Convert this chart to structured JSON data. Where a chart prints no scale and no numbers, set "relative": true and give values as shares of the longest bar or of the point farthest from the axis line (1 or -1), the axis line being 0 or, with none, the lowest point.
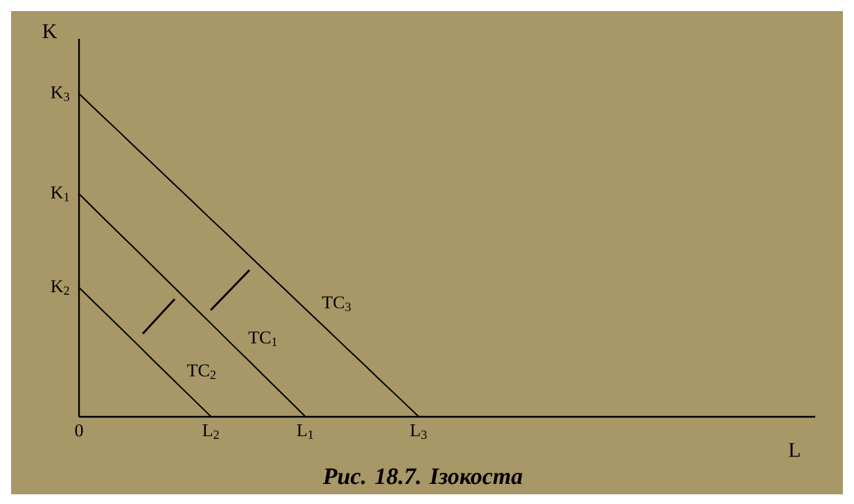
{
  "chart_data": {
    "type": "line",
    "relative": true,
    "title": "Рис. 18.7. Ізокоста",
    "xlabel": "L",
    "ylabel": "K",
    "marker": "none",
    "line_style": "solid",
    "categories": [
      "0",
      null,
      null,
      null,
      null,
      null,
      null,
      "L$_{2}$",
      null,
      null,
      null,
      null,
      "L$_{1}$",
      null,
      null,
      null,
      null,
      null,
      "L$_{3}$",
      null,
      null,
      null,
      null,
      null,
      null,
      null,
      null,
      null,
      null,
      null,
      null,
      null,
      null,
      null,
      null,
      null,
      null,
      null,
      null,
      null
    ],
    "series": [
      {
        "name": "TC$_{3}$",
        "color": "#000000",
        "values": [
          1,
          0.944,
          0.889,
          0.833,
          0.778,
          0.722,
          0.667,
          0.611,
          0.556,
          0.5,
          0.444,
          0.389,
          0.333,
          0.278,
          0.222,
          0.167,
          0.111,
          0.056,
          0,
          null,
          null,
          null,
          null,
          null,
          null,
          null,
          null,
          null,
          null,
          null,
          null,
          null,
          null,
          null,
          null,
          null,
          null,
          null,
          null,
          null
        ]
      },
      {
        "name": "TC$_{1}$",
        "color": "#000000",
        "values": [
          0.69,
          0.632,
          0.575,
          0.518,
          0.46,
          0.403,
          0.345,
          0.288,
          0.23,
          0.173,
          0.115,
          0.058,
          0,
          null,
          null,
          null,
          null,
          null,
          null,
          null,
          null,
          null,
          null,
          null,
          null,
          null,
          null,
          null,
          null,
          null,
          null,
          null,
          null,
          null,
          null,
          null,
          null,
          null,
          null,
          null
        ]
      },
      {
        "name": "TC$_{2}$",
        "color": "#000000",
        "values": [
          0.4,
          0.343,
          0.286,
          0.229,
          0.171,
          0.114,
          0.057,
          0,
          null,
          null,
          null,
          null,
          null,
          null,
          null,
          null,
          null,
          null,
          null,
          null,
          null,
          null,
          null,
          null,
          null,
          null,
          null,
          null,
          null,
          null,
          null,
          null,
          null,
          null,
          null,
          null,
          null,
          null,
          null,
          null
        ]
      }
    ],
    "annotations": [
      "K$_{3}$",
      "K$_{1}$",
      "K$_{2}$"
    ]
  }
}
